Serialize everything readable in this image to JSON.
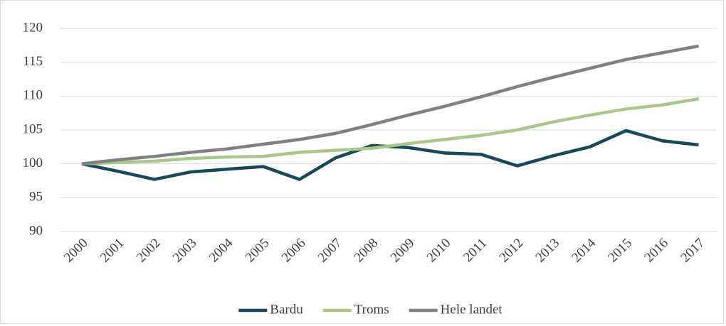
{
  "chart_data": {
    "type": "line",
    "categories": [
      "2000",
      "2001",
      "2002",
      "2003",
      "2004",
      "2005",
      "2006",
      "2007",
      "2008",
      "2009",
      "2010",
      "2011",
      "2012",
      "2013",
      "2014",
      "2015",
      "2016",
      "2017"
    ],
    "series": [
      {
        "name": "Bardu",
        "color": "#17495a",
        "values": [
          100,
          98.9,
          97.7,
          98.8,
          99.2,
          99.6,
          97.7,
          100.9,
          102.7,
          102.4,
          101.6,
          101.4,
          99.7,
          101.2,
          102.5,
          104.9,
          103.4,
          102.8
        ]
      },
      {
        "name": "Troms",
        "color": "#a9c98a",
        "values": [
          100,
          100.2,
          100.4,
          100.8,
          101.0,
          101.1,
          101.7,
          102.0,
          102.3,
          103.0,
          103.6,
          104.2,
          105.0,
          106.2,
          107.2,
          108.1,
          108.7,
          109.6
        ]
      },
      {
        "name": "Hele landet",
        "color": "#7f7f85",
        "values": [
          100,
          100.6,
          101.1,
          101.7,
          102.2,
          102.9,
          103.6,
          104.5,
          105.8,
          107.2,
          108.5,
          109.9,
          111.4,
          112.8,
          114.1,
          115.4,
          116.4,
          117.4
        ]
      }
    ],
    "ylim": [
      90,
      120
    ],
    "yticks": [
      90,
      95,
      100,
      105,
      110,
      115,
      120
    ],
    "grid": true,
    "legend": "bottom"
  }
}
